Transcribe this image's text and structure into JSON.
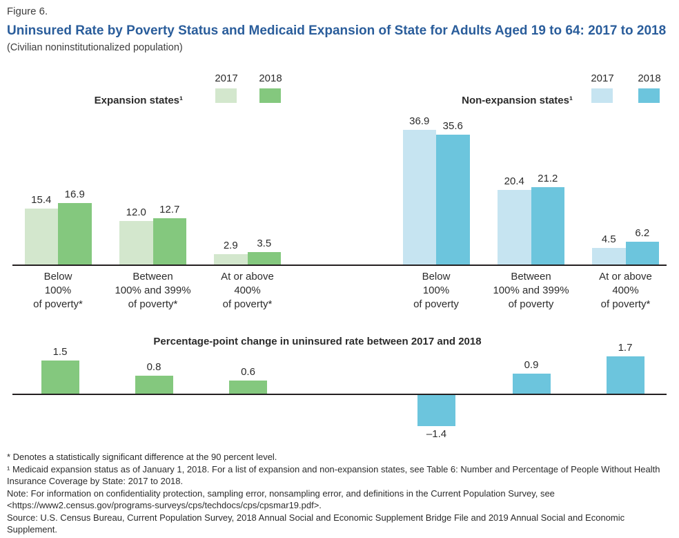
{
  "figure_label": "Figure 6.",
  "title": "Uninsured Rate by Poverty Status and Medicaid Expansion of State for Adults Aged 19 to 64: 2017 to 2018",
  "subtitle": "(Civilian noninstitutionalized population)",
  "colors": {
    "title_blue": "#2a5d9b",
    "green_2017": "#d3e7cd",
    "green_2018": "#84c87e",
    "blue_2017": "#c6e4f1",
    "blue_2018": "#6cc5dd",
    "axis": "#231f20",
    "text": "#2b2b2b"
  },
  "chart_data": [
    {
      "type": "bar",
      "id": "expansion",
      "title": "Expansion states¹",
      "legend": [
        "2017",
        "2018"
      ],
      "categories": [
        [
          "Below",
          "100%",
          "of poverty*"
        ],
        [
          "Between",
          "100% and 399%",
          "of poverty*"
        ],
        [
          "At or above",
          "400%",
          "of poverty*"
        ]
      ],
      "series": [
        {
          "name": "2017",
          "values": [
            15.4,
            12.0,
            2.9
          ],
          "labels": [
            "15.4",
            "12.0",
            "2.9"
          ]
        },
        {
          "name": "2018",
          "values": [
            16.9,
            12.7,
            3.5
          ],
          "labels": [
            "16.9",
            "12.7",
            "3.5"
          ]
        }
      ],
      "ylim": [
        0,
        40
      ],
      "grid": false,
      "legend_position": "top-right"
    },
    {
      "type": "bar",
      "id": "non-expansion",
      "title": "Non-expansion states¹",
      "legend": [
        "2017",
        "2018"
      ],
      "categories": [
        [
          "Below",
          "100%",
          "of poverty"
        ],
        [
          "Between",
          "100% and 399%",
          "of poverty"
        ],
        [
          "At or above",
          "400%",
          "of poverty*"
        ]
      ],
      "series": [
        {
          "name": "2017",
          "values": [
            36.9,
            20.4,
            4.5
          ],
          "labels": [
            "36.9",
            "20.4",
            "4.5"
          ]
        },
        {
          "name": "2018",
          "values": [
            35.6,
            21.2,
            6.2
          ],
          "labels": [
            "35.6",
            "21.2",
            "6.2"
          ]
        }
      ],
      "ylim": [
        0,
        40
      ],
      "grid": false,
      "legend_position": "top-right"
    },
    {
      "type": "bar",
      "id": "change",
      "title": "Percentage-point change in uninsured rate between 2017 and 2018",
      "categories": [
        "Expansion Below 100%",
        "Expansion 100-399%",
        "Expansion 400%+",
        "Non-expansion Below 100%",
        "Non-expansion 100-399%",
        "Non-expansion 400%+"
      ],
      "values": [
        1.5,
        0.8,
        0.6,
        -1.4,
        0.9,
        1.7
      ],
      "labels": [
        "1.5",
        "0.8",
        "0.6",
        "–1.4",
        "0.9",
        "1.7"
      ],
      "ylim": [
        -2,
        2
      ],
      "grid": false
    }
  ],
  "footnotes": [
    "* Denotes a statistically significant difference at the 90 percent level.",
    "¹ Medicaid expansion status as of January 1, 2018. For a list of expansion and non-expansion states, see Table 6: Number and Percentage of People Without Health Insurance Coverage by State: 2017 to 2018.",
    "Note: For information on confidentiality protection, sampling error, nonsampling error, and definitions in the Current Population Survey, see <https://www2.census.gov/programs-surveys/cps/techdocs/cps/cpsmar19.pdf>.",
    "Source: U.S. Census Bureau, Current Population Survey, 2018 Annual Social and Economic Supplement Bridge File and 2019 Annual Social and Economic Supplement."
  ]
}
